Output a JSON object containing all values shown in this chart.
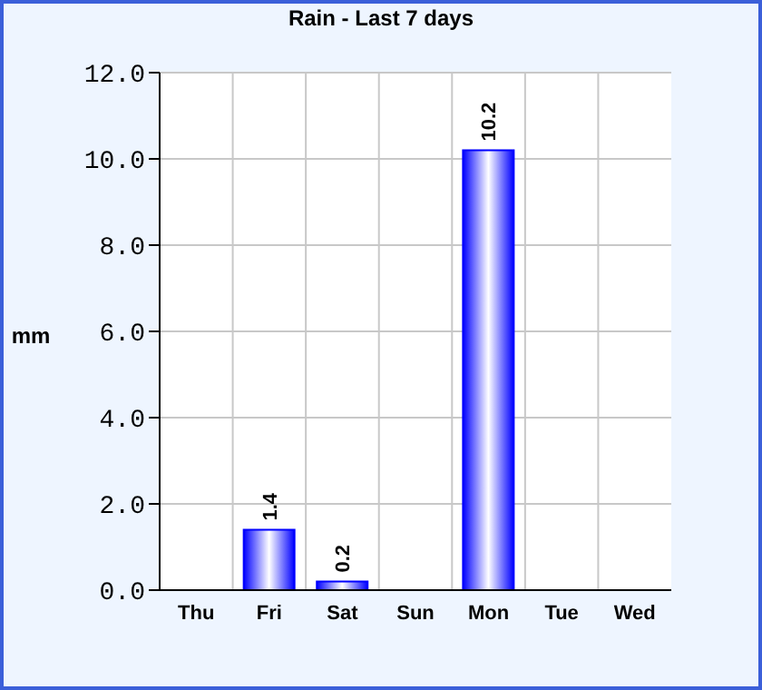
{
  "chart_data": {
    "type": "bar",
    "title": "Rain - Last 7 days",
    "ylabel": "mm",
    "categories": [
      "Thu",
      "Fri",
      "Sat",
      "Sun",
      "Mon",
      "Tue",
      "Wed"
    ],
    "values": [
      0,
      1.4,
      0.2,
      0,
      10.2,
      0,
      0
    ],
    "color": "#0000ff",
    "value_labels": [
      null,
      "1.4",
      "0.2",
      null,
      "10.2",
      null,
      null
    ],
    "ylim": [
      0,
      12
    ],
    "yticks": [
      {
        "value": 0,
        "label": "0.0"
      },
      {
        "value": 2,
        "label": "2.0"
      },
      {
        "value": 4,
        "label": "4.0"
      },
      {
        "value": 6,
        "label": "6.0"
      },
      {
        "value": 8,
        "label": "8.0"
      },
      {
        "value": 10,
        "label": "10.0"
      },
      {
        "value": 12,
        "label": "12.0"
      }
    ],
    "grid": true
  }
}
